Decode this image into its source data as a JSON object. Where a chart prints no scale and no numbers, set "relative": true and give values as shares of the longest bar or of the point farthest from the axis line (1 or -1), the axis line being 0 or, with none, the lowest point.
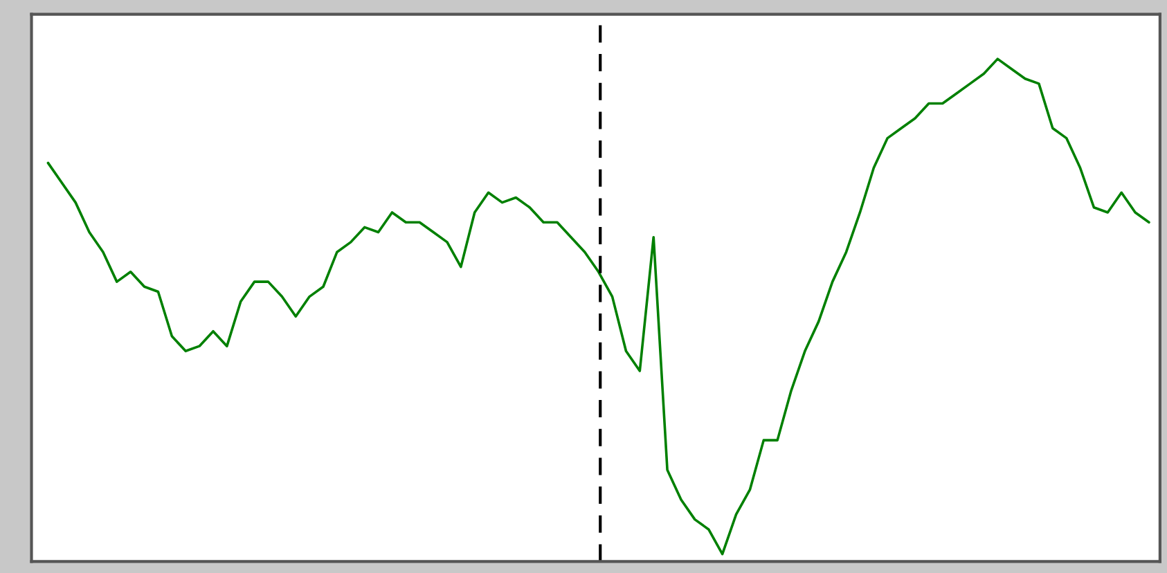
{
  "chart_data": {
    "type": "line",
    "relative": true,
    "marker": "none",
    "line_style": "solid",
    "categories": [
      null,
      null,
      null,
      null,
      null,
      null,
      null,
      null,
      null,
      null,
      null,
      null,
      null,
      null,
      null,
      null,
      null,
      null,
      null,
      null,
      null,
      null,
      null,
      null,
      null,
      null,
      null,
      null,
      null,
      null,
      null,
      null,
      null,
      null,
      null,
      null,
      null,
      null,
      null,
      null,
      null,
      null,
      null,
      null,
      null,
      null,
      null,
      null,
      null,
      null,
      null,
      null,
      null,
      null,
      null,
      null,
      null,
      null,
      null,
      null,
      null,
      null,
      null,
      null,
      null,
      null,
      null,
      null,
      null,
      null,
      null,
      null,
      null,
      null,
      null,
      null,
      null,
      null,
      null,
      null,
      null
    ],
    "series": [
      {
        "color": "#008000",
        "values": [
          0.79,
          0.75,
          0.71,
          0.65,
          0.61,
          0.55,
          0.57,
          0.54,
          0.53,
          0.44,
          0.41,
          0.42,
          0.45,
          0.42,
          0.51,
          0.55,
          0.55,
          0.52,
          0.48,
          0.52,
          0.54,
          0.61,
          0.63,
          0.66,
          0.65,
          0.69,
          0.67,
          0.67,
          0.65,
          0.63,
          0.58,
          0.69,
          0.73,
          0.71,
          0.72,
          0.7,
          0.67,
          0.67,
          0.64,
          0.61,
          0.57,
          0.52,
          0.41,
          0.37,
          0.64,
          0.17,
          0.11,
          0.07,
          0.05,
          0,
          0.08,
          0.13,
          0.23,
          0.23,
          0.33,
          0.41,
          0.47,
          0.55,
          0.61,
          0.69,
          0.78,
          0.84,
          0.86,
          0.88,
          0.91,
          0.91,
          0.93,
          0.95,
          0.97,
          1,
          0.98,
          0.96,
          0.95,
          0.86,
          0.84,
          0.78,
          0.7,
          0.69,
          0.73,
          0.69,
          0.67
        ]
      }
    ]
  }
}
